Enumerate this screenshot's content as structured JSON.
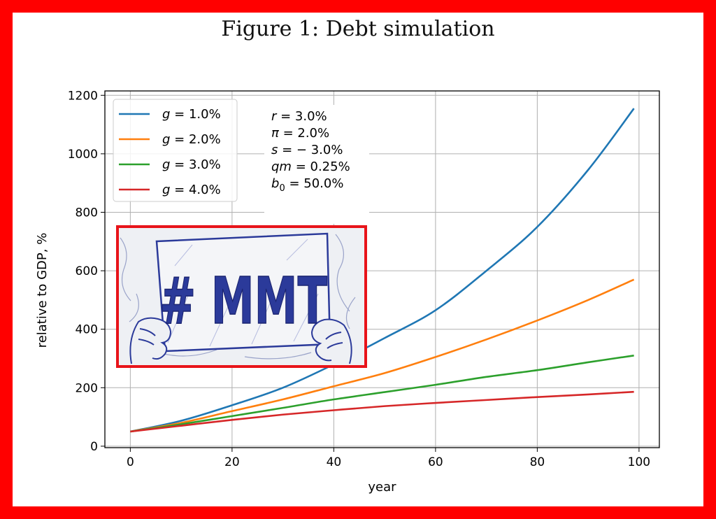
{
  "figure": {
    "title": "Figure 1: Debt simulation"
  },
  "parameters": [
    {
      "symbol": "r",
      "subscript": "",
      "value": "= 3.0%"
    },
    {
      "symbol": "π",
      "subscript": "",
      "value": "= 2.0%"
    },
    {
      "symbol": "s",
      "subscript": "",
      "value": "= − 3.0%"
    },
    {
      "symbol": "qm",
      "subscript": "",
      "value": "= 0.25%"
    },
    {
      "symbol": "b",
      "subscript": "0",
      "value": "= 50.0%"
    }
  ],
  "inset_image": {
    "icon": "mmt-protest-sign-sketch",
    "sign_text": "# MMT",
    "border_color": "#e8141a",
    "ink_color": "#2b3a9a"
  },
  "chart_data": {
    "type": "line",
    "title": "",
    "xlabel": "year",
    "ylabel": "relative to GDP, %",
    "xlim": [
      -5,
      104
    ],
    "ylim": [
      -5,
      1215
    ],
    "xticks": [
      0,
      20,
      40,
      60,
      80,
      100
    ],
    "yticks": [
      0,
      200,
      400,
      600,
      800,
      1000,
      1200
    ],
    "grid": true,
    "legend_position": "top-left",
    "x": [
      0,
      10,
      20,
      30,
      40,
      50,
      60,
      70,
      80,
      90,
      99
    ],
    "series": [
      {
        "name": "g = 1.0%",
        "label_var": "g",
        "label_value": "= 1.0%",
        "color": "#1f77b4",
        "values": [
          50,
          87,
          140,
          200,
          280,
          370,
          465,
          600,
          750,
          945,
          1155
        ]
      },
      {
        "name": "g = 2.0%",
        "label_var": "g",
        "label_value": "= 2.0%",
        "color": "#ff7f0e",
        "values": [
          50,
          80,
          120,
          160,
          205,
          250,
          305,
          365,
          430,
          500,
          570
        ]
      },
      {
        "name": "g = 3.0%",
        "label_var": "g",
        "label_value": "= 3.0%",
        "color": "#2ca02c",
        "values": [
          50,
          75,
          103,
          131,
          160,
          185,
          210,
          237,
          260,
          287,
          310
        ]
      },
      {
        "name": "g = 4.0%",
        "label_var": "g",
        "label_value": "= 4.0%",
        "color": "#d62728",
        "values": [
          50,
          70,
          90,
          108,
          123,
          137,
          148,
          158,
          168,
          177,
          186
        ]
      }
    ]
  }
}
